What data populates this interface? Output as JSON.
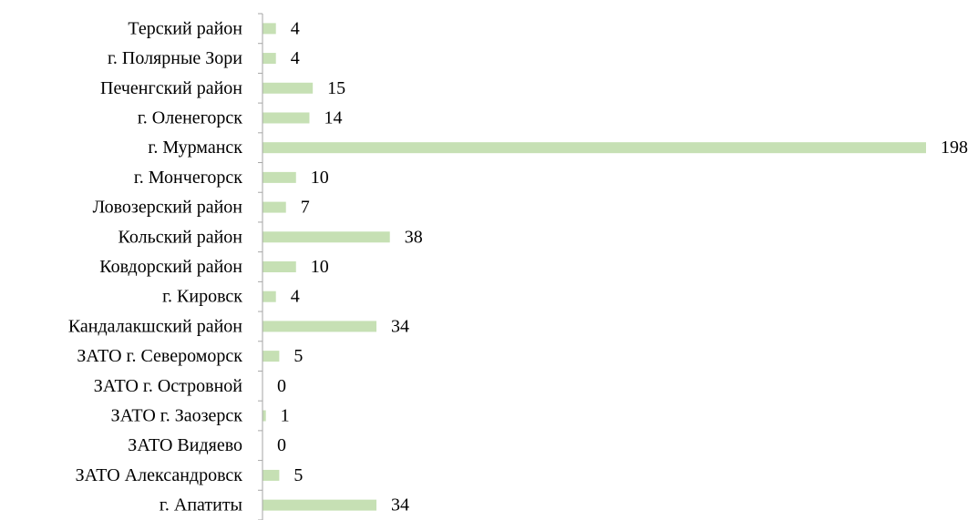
{
  "chart_data": {
    "type": "bar",
    "orientation": "horizontal",
    "categories": [
      "Терский район",
      "г. Полярные Зори",
      "Печенгский район",
      "г. Оленегорск",
      "г. Мурманск",
      "г. Мончегорск",
      "Ловозерский район",
      "Кольский район",
      "Ковдорский район",
      "г. Кировск",
      "Кандалакшский район",
      "ЗАТО г. Североморск",
      "ЗАТО г. Островной",
      "ЗАТО г. Заозерск",
      "ЗАТО Видяево",
      "ЗАТО Александровск",
      "г. Апатиты"
    ],
    "values": [
      4,
      4,
      15,
      14,
      198,
      10,
      7,
      38,
      10,
      4,
      34,
      5,
      0,
      1,
      0,
      5,
      34
    ],
    "title": "",
    "xlabel": "",
    "ylabel": "",
    "xlim": [
      0,
      198
    ],
    "grid": false,
    "legend": "none",
    "bar_color": "#c6e0b4",
    "axis_color": "#a6a6a6"
  }
}
